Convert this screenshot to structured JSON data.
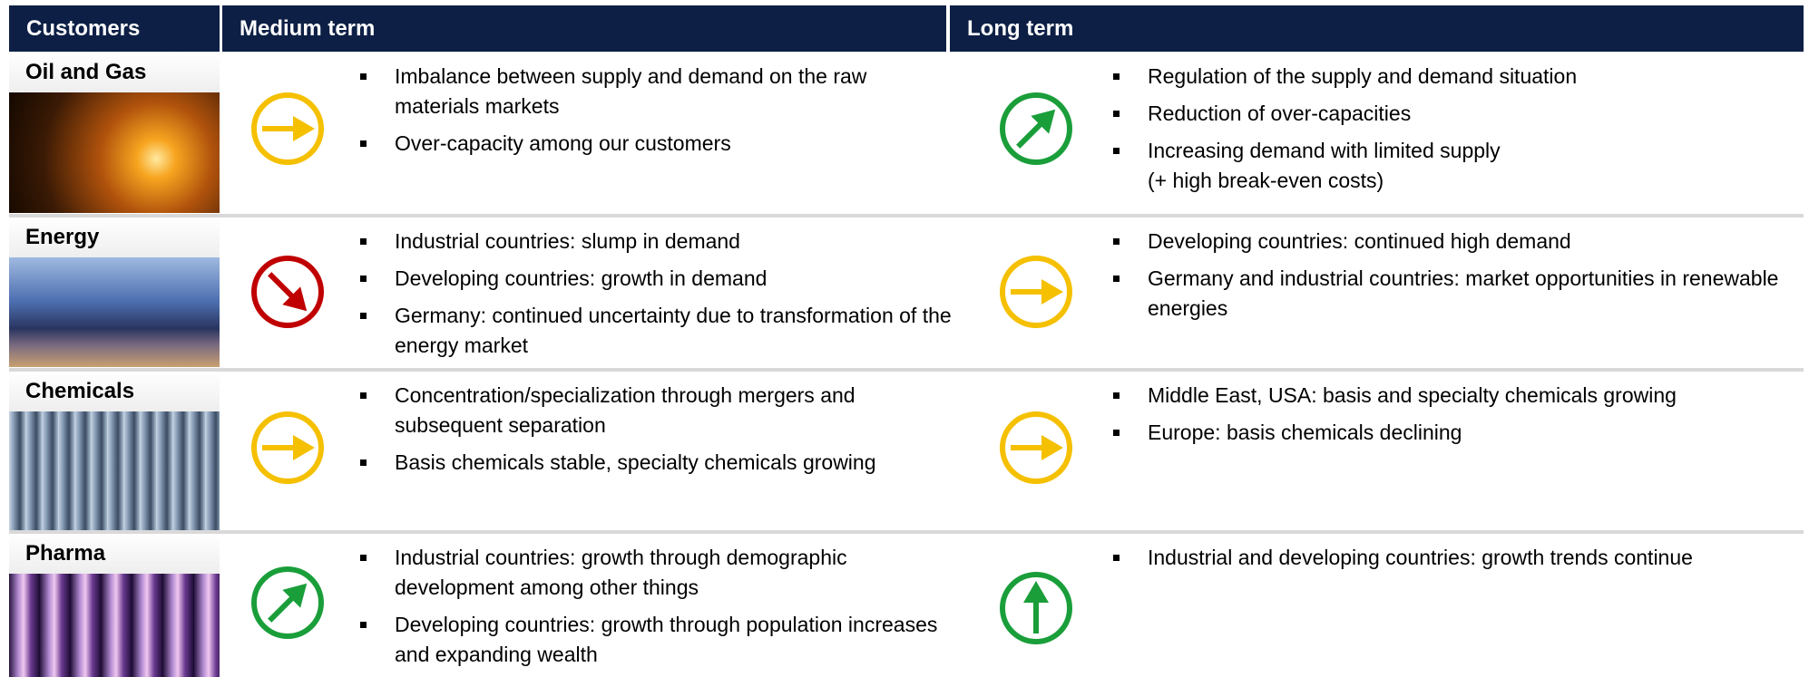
{
  "header": {
    "customers": "Customers",
    "medium_term": "Medium term",
    "long_term": "Long term"
  },
  "rows": [
    {
      "customer": "Oil and Gas",
      "medium_term": [
        "Imbalance between supply and demand on the raw materials markets",
        "Over-capacity among our customers"
      ],
      "long_term": [
        "Regulation of the supply and demand situation",
        "Reduction of over-capacities",
        "Increasing demand with limited supply\n(+ high break-even costs)"
      ]
    },
    {
      "customer": "Energy",
      "medium_term": [
        "Industrial countries: slump in demand",
        "Developing countries: growth in demand",
        "Germany: continued uncertainty due to transformation of the energy market"
      ],
      "long_term": [
        "Developing countries: continued high demand",
        "Germany and industrial countries: market opportunities in renewable energies"
      ]
    },
    {
      "customer": "Chemicals",
      "medium_term": [
        "Concentration/specialization through mergers and subsequent separation",
        "Basis chemicals stable, specialty chemicals growing"
      ],
      "long_term": [
        "Middle East, USA: basis and specialty chemicals growing",
        "Europe: basis chemicals declining"
      ]
    },
    {
      "customer": "Pharma",
      "medium_term": [
        "Industrial countries: growth through demographic development among other things",
        "Developing countries: growth through population increases and expanding wealth"
      ],
      "long_term": [
        "Industrial and developing countries: growth trends continue"
      ]
    }
  ]
}
